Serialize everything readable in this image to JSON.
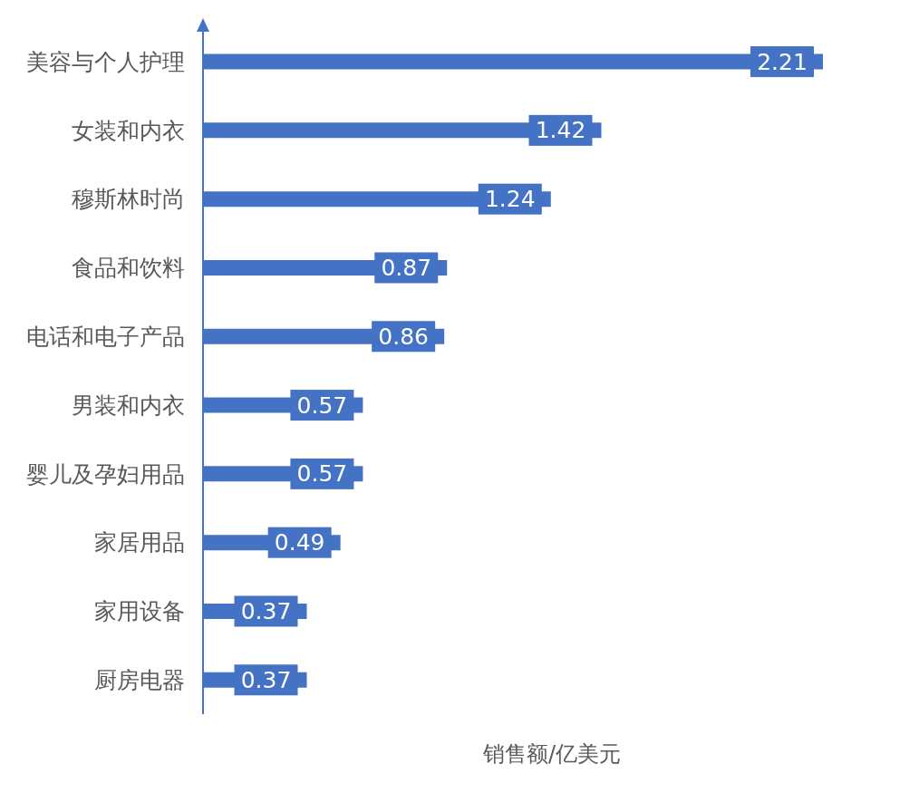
{
  "chart_data": {
    "type": "bar",
    "orientation": "horizontal",
    "xlabel": "销售额/亿美元",
    "categories": [
      "美容与个人护理",
      "女装和内衣",
      "穆斯林时尚",
      "食品和饮料",
      "电话和电子产品",
      "男装和内衣",
      "婴儿及孕妇用品",
      "家居用品",
      "家用设备",
      "厨房电器"
    ],
    "values": [
      2.21,
      1.42,
      1.24,
      0.87,
      0.86,
      0.57,
      0.57,
      0.49,
      0.37,
      0.37
    ],
    "color": "#4472c4",
    "data_labels": true
  }
}
